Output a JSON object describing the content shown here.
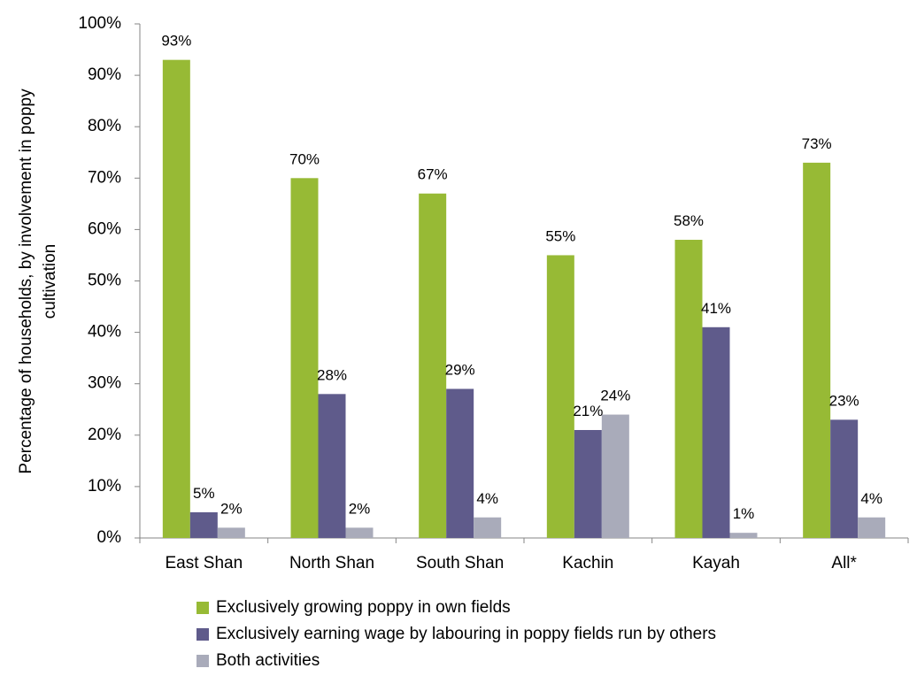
{
  "chart_data": {
    "type": "bar",
    "title": "",
    "xlabel": "",
    "ylabel": "Percentage of households, by involvement in poppy cultivation",
    "ylabel_lines": [
      "Percentage of households, by involvement in poppy",
      "cultivation"
    ],
    "ylim": [
      0,
      100
    ],
    "yticks": [
      "0%",
      "10%",
      "20%",
      "30%",
      "40%",
      "50%",
      "60%",
      "70%",
      "80%",
      "90%",
      "100%"
    ],
    "grid": false,
    "legend_position": "bottom",
    "categories": [
      "East Shan",
      "North Shan",
      "South Shan",
      "Kachin",
      "Kayah",
      "All*"
    ],
    "series": [
      {
        "name": "Exclusively growing poppy in own fields",
        "color": "#97BA35",
        "values": [
          93,
          70,
          67,
          55,
          58,
          73
        ],
        "labels": [
          "93%",
          "70%",
          "67%",
          "55%",
          "58%",
          "73%"
        ]
      },
      {
        "name": "Exclusively earning wage by labouring in poppy fields run by others",
        "color": "#5F5B8B",
        "values": [
          5,
          28,
          29,
          21,
          41,
          23
        ],
        "labels": [
          "5%",
          "28%",
          "29%",
          "21%",
          "41%",
          "23%"
        ]
      },
      {
        "name": "Both activities",
        "color": "#A9ABBA",
        "values": [
          2,
          2,
          4,
          24,
          1,
          4
        ],
        "labels": [
          "2%",
          "2%",
          "4%",
          "24%",
          "1%",
          "4%"
        ]
      }
    ]
  }
}
